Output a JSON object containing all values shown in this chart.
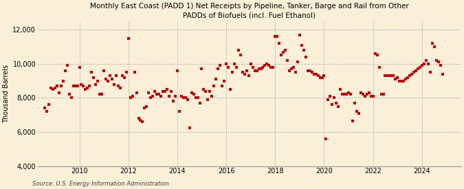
{
  "title": "Monthly East Coast (PADD 1) Net Receipts by Pipeline, Tanker, Barge and Rail from Other\nPADDs of Biofuels (incl. Fuel Ethanol)",
  "ylabel": "Thousand Barrels",
  "source": "Source: U.S. Energy Information Administration",
  "background_color": "#faefd8",
  "plot_bg_color": "#faefd8",
  "marker_color": "#cc0000",
  "marker_size": 6,
  "ylim": [
    4000,
    12500
  ],
  "yticks": [
    4000,
    6000,
    8000,
    10000,
    12000
  ],
  "xlim_start": 2008.3,
  "xlim_end": 2025.6,
  "xticks": [
    2010,
    2012,
    2014,
    2016,
    2018,
    2020,
    2022,
    2024
  ],
  "data": {
    "dates": [
      2008.583,
      2008.667,
      2008.75,
      2008.833,
      2008.917,
      2009.0,
      2009.083,
      2009.167,
      2009.25,
      2009.333,
      2009.417,
      2009.5,
      2009.583,
      2009.667,
      2009.75,
      2009.833,
      2009.917,
      2010.0,
      2010.083,
      2010.167,
      2010.25,
      2010.333,
      2010.417,
      2010.5,
      2010.583,
      2010.667,
      2010.75,
      2010.833,
      2010.917,
      2011.0,
      2011.083,
      2011.167,
      2011.25,
      2011.333,
      2011.417,
      2011.5,
      2011.583,
      2011.667,
      2011.75,
      2011.833,
      2011.917,
      2012.0,
      2012.083,
      2012.167,
      2012.25,
      2012.333,
      2012.417,
      2012.5,
      2012.583,
      2012.667,
      2012.75,
      2012.833,
      2012.917,
      2013.0,
      2013.083,
      2013.167,
      2013.25,
      2013.333,
      2013.417,
      2013.5,
      2013.583,
      2013.667,
      2013.75,
      2013.833,
      2013.917,
      2014.0,
      2014.083,
      2014.167,
      2014.25,
      2014.333,
      2014.417,
      2014.5,
      2014.583,
      2014.667,
      2014.75,
      2014.833,
      2014.917,
      2015.0,
      2015.083,
      2015.167,
      2015.25,
      2015.333,
      2015.417,
      2015.5,
      2015.583,
      2015.667,
      2015.75,
      2015.833,
      2015.917,
      2016.0,
      2016.083,
      2016.167,
      2016.25,
      2016.333,
      2016.417,
      2016.5,
      2016.583,
      2016.667,
      2016.75,
      2016.833,
      2016.917,
      2017.0,
      2017.083,
      2017.167,
      2017.25,
      2017.333,
      2017.417,
      2017.5,
      2017.583,
      2017.667,
      2017.75,
      2017.833,
      2017.917,
      2018.0,
      2018.083,
      2018.167,
      2018.25,
      2018.333,
      2018.417,
      2018.5,
      2018.583,
      2018.667,
      2018.75,
      2018.833,
      2018.917,
      2019.0,
      2019.083,
      2019.167,
      2019.25,
      2019.333,
      2019.417,
      2019.5,
      2019.583,
      2019.667,
      2019.75,
      2019.833,
      2019.917,
      2020.0,
      2020.083,
      2020.167,
      2020.25,
      2020.333,
      2020.417,
      2020.5,
      2020.583,
      2020.667,
      2020.75,
      2020.833,
      2020.917,
      2021.0,
      2021.083,
      2021.167,
      2021.25,
      2021.333,
      2021.417,
      2021.5,
      2021.583,
      2021.667,
      2021.75,
      2021.833,
      2021.917,
      2022.0,
      2022.083,
      2022.167,
      2022.25,
      2022.333,
      2022.417,
      2022.5,
      2022.583,
      2022.667,
      2022.75,
      2022.833,
      2022.917,
      2023.0,
      2023.083,
      2023.167,
      2023.25,
      2023.333,
      2023.417,
      2023.5,
      2023.583,
      2023.667,
      2023.75,
      2023.833,
      2023.917,
      2024.0,
      2024.083,
      2024.167,
      2024.25,
      2024.333,
      2024.417,
      2024.5,
      2024.583,
      2024.667,
      2024.75,
      2024.833
    ],
    "values": [
      7400,
      7200,
      7600,
      8600,
      8500,
      8600,
      8700,
      8300,
      8700,
      9000,
      9600,
      9900,
      8200,
      8000,
      8700,
      8700,
      8700,
      9800,
      8800,
      8700,
      8500,
      8600,
      8700,
      9500,
      9200,
      8800,
      9000,
      8200,
      8200,
      9600,
      9100,
      9000,
      9300,
      9100,
      8800,
      9300,
      8700,
      8600,
      9300,
      9200,
      9500,
      11500,
      8000,
      8100,
      9500,
      8300,
      6800,
      6700,
      6600,
      7400,
      7500,
      8300,
      8000,
      8100,
      8400,
      8200,
      8200,
      8100,
      8400,
      8400,
      8500,
      8100,
      8400,
      7800,
      8100,
      9600,
      7200,
      8100,
      8000,
      8000,
      7900,
      6250,
      8300,
      8200,
      8000,
      8000,
      7700,
      9700,
      8500,
      8400,
      7900,
      8400,
      8100,
      8700,
      9100,
      9700,
      9900,
      8700,
      9000,
      10000,
      9800,
      8500,
      9500,
      10000,
      9800,
      10800,
      10500,
      9500,
      9400,
      9600,
      9300,
      10000,
      9800,
      9600,
      9600,
      9700,
      9700,
      9800,
      9900,
      10000,
      9900,
      9800,
      9800,
      11600,
      11600,
      11200,
      10500,
      10700,
      10800,
      10200,
      9600,
      9700,
      9800,
      9500,
      10100,
      11700,
      11100,
      10800,
      10400,
      9600,
      9600,
      9500,
      9400,
      9400,
      9300,
      9200,
      9200,
      9300,
      5600,
      7900,
      8100,
      7600,
      8000,
      7700,
      7500,
      8500,
      8200,
      8200,
      8200,
      8300,
      8200,
      6650,
      7700,
      7200,
      7100,
      8300,
      8200,
      8100,
      8200,
      8300,
      8100,
      8100,
      10600,
      10500,
      9800,
      8200,
      8200,
      9300,
      9300,
      9300,
      9300,
      9300,
      9100,
      9200,
      9000,
      9000,
      9000,
      9100,
      9200,
      9300,
      9400,
      9500,
      9600,
      9700,
      9800,
      9900,
      10000,
      10200,
      10000,
      9500,
      11200,
      11000,
      10200,
      10100,
      9900,
      9400
    ]
  }
}
